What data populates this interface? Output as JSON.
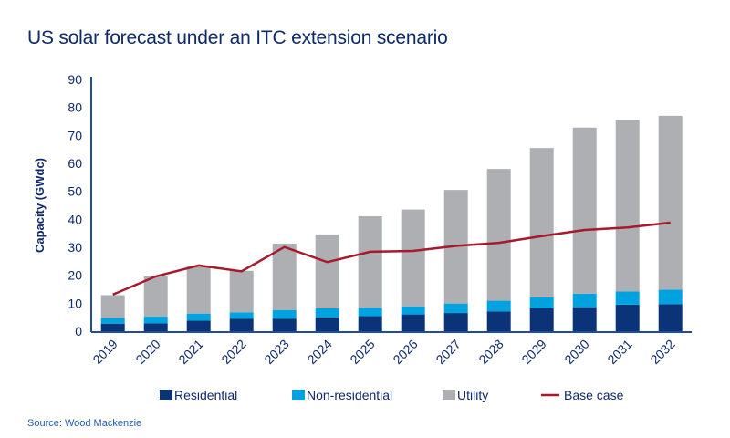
{
  "title": "US solar forecast under an ITC extension scenario",
  "source": "Source: Wood Mackenzie",
  "chart_data": {
    "type": "bar",
    "stacked": true,
    "title": "US solar forecast under an ITC extension scenario",
    "ylabel": "Capacity (GWdc)",
    "xlabel": "",
    "ylim": [
      0,
      90
    ],
    "yticks": [
      0,
      10,
      20,
      30,
      40,
      50,
      60,
      70,
      80,
      90
    ],
    "grid": false,
    "legend_position": "bottom",
    "categories": [
      "2019",
      "2020",
      "2021",
      "2022",
      "2023",
      "2024",
      "2025",
      "2026",
      "2027",
      "2028",
      "2029",
      "2030",
      "2031",
      "2032"
    ],
    "series": [
      {
        "name": "Residential",
        "type": "bar",
        "color": "#0b3478",
        "values": [
          2.7,
          2.8,
          3.8,
          4.5,
          4.5,
          5.0,
          5.4,
          6.0,
          6.5,
          7.1,
          8.2,
          8.6,
          9.5,
          9.7
        ]
      },
      {
        "name": "Non-residential",
        "type": "bar",
        "color": "#00a3e0",
        "values": [
          2.0,
          2.4,
          2.5,
          2.2,
          3.1,
          3.2,
          3.0,
          2.9,
          3.4,
          3.8,
          3.9,
          4.8,
          4.7,
          5.2
        ]
      },
      {
        "name": "Utility",
        "type": "bar",
        "color": "#adafb2",
        "values": [
          8.2,
          14.4,
          16.8,
          14.9,
          23.7,
          26.4,
          32.7,
          34.6,
          40.6,
          47.1,
          53.4,
          59.4,
          61.3,
          62.1
        ]
      },
      {
        "name": "Base case",
        "type": "line",
        "color": "#a6192e",
        "values": [
          13.1,
          19.6,
          23.5,
          21.4,
          30.1,
          24.7,
          28.4,
          28.7,
          30.5,
          31.6,
          34.0,
          36.2,
          37.1,
          38.8
        ]
      }
    ]
  }
}
